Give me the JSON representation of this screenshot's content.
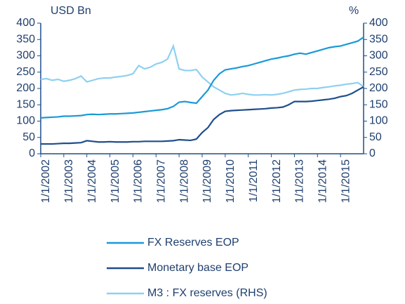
{
  "chart_data": {
    "type": "line",
    "y_label": "USD Bn",
    "y2_label": "%",
    "x": [
      2002,
      2002.25,
      2002.5,
      2002.75,
      2003,
      2003.25,
      2003.5,
      2003.75,
      2004,
      2004.25,
      2004.5,
      2004.75,
      2005,
      2005.25,
      2005.5,
      2005.75,
      2006,
      2006.25,
      2006.5,
      2006.75,
      2007,
      2007.25,
      2007.5,
      2007.75,
      2008,
      2008.25,
      2008.5,
      2008.75,
      2009,
      2009.25,
      2009.5,
      2009.75,
      2010,
      2010.25,
      2010.5,
      2010.75,
      2011,
      2011.25,
      2011.5,
      2011.75,
      2012,
      2012.25,
      2012.5,
      2012.75,
      2013,
      2013.25,
      2013.5,
      2013.75,
      2014,
      2014.25,
      2014.5,
      2014.75,
      2015,
      2015.25,
      2015.5,
      2015.75,
      2016
    ],
    "series": [
      {
        "name": "FX Reserves EOP",
        "color": "#1a9ad6",
        "values": [
          110,
          111,
          112,
          113,
          115,
          115,
          116,
          117,
          120,
          121,
          120,
          121,
          122,
          122,
          123,
          124,
          125,
          127,
          129,
          131,
          133,
          135,
          138,
          145,
          158,
          160,
          157,
          155,
          175,
          195,
          225,
          245,
          257,
          260,
          263,
          267,
          270,
          275,
          280,
          285,
          290,
          293,
          297,
          300,
          305,
          308,
          305,
          310,
          315,
          320,
          325,
          328,
          330,
          335,
          340,
          345,
          357
        ]
      },
      {
        "name": "Monetary base EOP",
        "color": "#1f4e8c",
        "values": [
          30,
          30,
          30,
          31,
          32,
          32,
          33,
          34,
          40,
          38,
          36,
          36,
          37,
          36,
          36,
          36,
          37,
          37,
          38,
          38,
          38,
          38,
          39,
          40,
          43,
          42,
          41,
          45,
          65,
          80,
          105,
          120,
          130,
          132,
          133,
          134,
          135,
          136,
          137,
          138,
          140,
          141,
          143,
          150,
          160,
          160,
          160,
          161,
          163,
          165,
          167,
          170,
          175,
          178,
          185,
          195,
          205
        ]
      },
      {
        "name": "M3 : FX reserves (RHS)",
        "color": "#8fd0f0",
        "axis": "y2",
        "values": [
          228,
          230,
          225,
          228,
          222,
          225,
          230,
          238,
          220,
          225,
          230,
          232,
          232,
          235,
          237,
          240,
          245,
          270,
          260,
          265,
          275,
          280,
          290,
          330,
          260,
          255,
          255,
          258,
          235,
          220,
          205,
          195,
          185,
          180,
          182,
          185,
          182,
          180,
          180,
          181,
          180,
          182,
          185,
          190,
          195,
          197,
          198,
          200,
          200,
          203,
          205,
          208,
          210,
          213,
          215,
          218,
          205
        ]
      }
    ],
    "xlim": [
      2002,
      2016
    ],
    "xticks": [
      {
        "value": 2002,
        "label": "1/1/2002"
      },
      {
        "value": 2003,
        "label": "1/1/2003"
      },
      {
        "value": 2004,
        "label": "1/1/2004"
      },
      {
        "value": 2005,
        "label": "1/1/2005"
      },
      {
        "value": 2006,
        "label": "1/1/2006"
      },
      {
        "value": 2007,
        "label": "1/1/2007"
      },
      {
        "value": 2008,
        "label": "1/1/2008"
      },
      {
        "value": 2009,
        "label": "1/1/2009"
      },
      {
        "value": 2010,
        "label": "1/1/2010"
      },
      {
        "value": 2011,
        "label": "1/1/2011"
      },
      {
        "value": 2012,
        "label": "1/1/2012"
      },
      {
        "value": 2013,
        "label": "1/1/2013"
      },
      {
        "value": 2014,
        "label": "1/1/2014"
      },
      {
        "value": 2015,
        "label": "1/1/2015"
      }
    ],
    "ylim": [
      0,
      400
    ],
    "yticks": [
      0,
      50,
      100,
      150,
      200,
      250,
      300,
      350,
      400
    ],
    "y2lim": [
      0,
      400
    ],
    "y2ticks": [
      0,
      50,
      100,
      150,
      200,
      250,
      300,
      350,
      400
    ],
    "legend": "bottom"
  }
}
